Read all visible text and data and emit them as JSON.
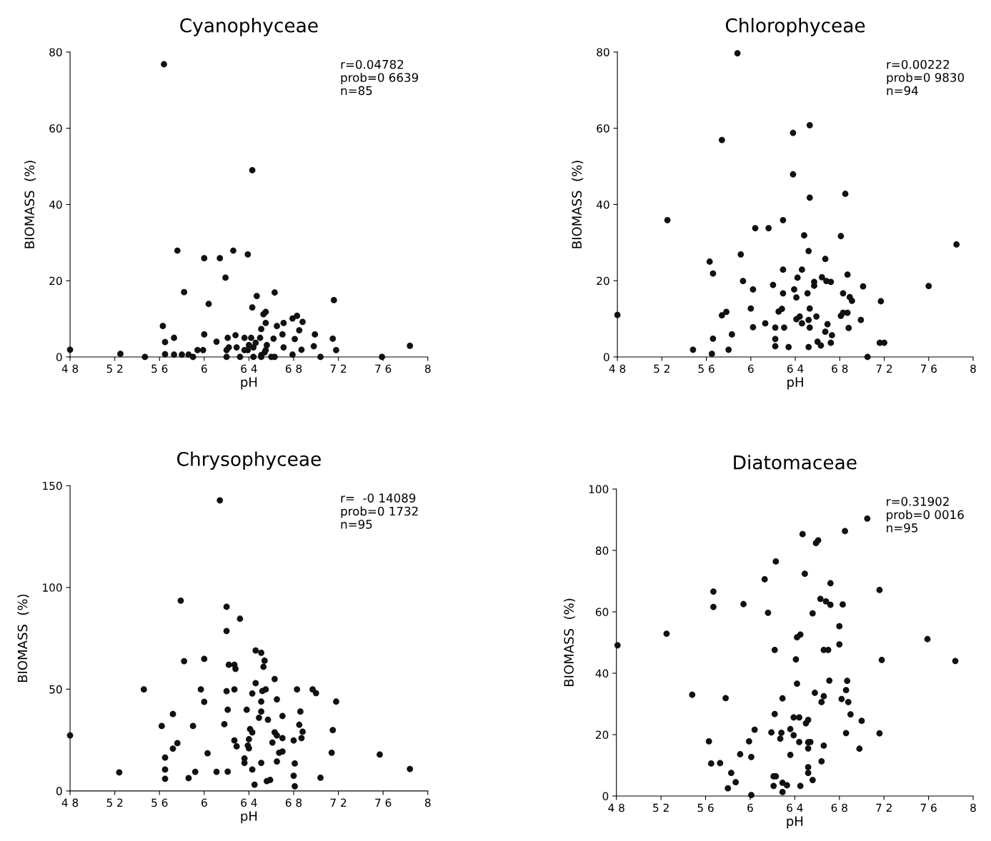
{
  "chart_data": [
    {
      "type": "scatter",
      "title": "Cyanophyceae",
      "xlabel": "pH",
      "ylabel": "BIOMASS  (%)",
      "color": "#111111",
      "marker": "circle",
      "xlim": [
        4.8,
        8
      ],
      "xticks": [
        {
          "value": 4.8,
          "label": "4 8"
        },
        {
          "value": 5.2,
          "label": "5 2"
        },
        {
          "value": 5.6,
          "label": "5 6"
        },
        6,
        {
          "value": 6.4,
          "label": "6 4"
        },
        {
          "value": 6.8,
          "label": "6 8"
        },
        {
          "value": 7.2,
          "label": "7 2"
        },
        {
          "value": 7.6,
          "label": "7 6"
        },
        8
      ],
      "ylim": [
        0,
        80
      ],
      "yticks": [
        0,
        20,
        40,
        60,
        80
      ],
      "annotations": [
        "r=0.04782",
        "prob=0 6639",
        "n=85"
      ],
      "x": [
        4.8,
        5.25,
        5.47,
        5.64,
        5.76,
        5.82,
        5.63,
        5.65,
        5.73,
        5.65,
        5.73,
        5.8,
        5.86,
        5.9,
        5.94,
        5.99,
        6.0,
        6.04,
        6.0,
        6.11,
        6.14,
        6.19,
        6.26,
        6.39,
        6.43,
        6.47,
        6.43,
        6.63,
        7.16,
        7.84,
        7.59,
        7.18,
        7.15,
        7.04,
        6.99,
        6.98,
        6.79,
        6.85,
        6.83,
        6.79,
        6.88,
        6.81,
        6.87,
        6.71,
        6.65,
        6.7,
        6.71,
        6.62,
        6.63,
        6.55,
        6.53,
        6.55,
        6.51,
        6.5,
        6.56,
        6.54,
        6.51,
        6.44,
        6.51,
        6.6,
        6.36,
        6.42,
        6.4,
        6.36,
        6.32,
        6.46,
        6.28,
        6.29,
        6.21,
        6.2,
        6.2,
        6.22,
        6.39,
        6.55,
        6.44
      ],
      "values": [
        1.9,
        0.8,
        0,
        76.8,
        27.9,
        17.0,
        8.1,
        3.9,
        5.0,
        0.7,
        0.6,
        0.6,
        0.6,
        0,
        1.8,
        1.8,
        25.9,
        13.9,
        5.9,
        4.0,
        25.9,
        20.8,
        27.9,
        26.9,
        49.0,
        16.0,
        13.0,
        16.9,
        14.9,
        2.9,
        0,
        1.8,
        4.8,
        0,
        5.9,
        2.8,
        0.6,
        7.0,
        10.8,
        10.1,
        9.2,
        4.7,
        1.9,
        8.9,
        8.1,
        5.9,
        2.5,
        4.8,
        0,
        11.8,
        11.2,
        8.9,
        7.3,
        5.0,
        3.1,
        1.2,
        0.5,
        0,
        0,
        0,
        5.0,
        5.0,
        3.1,
        1.8,
        0,
        3.7,
        5.7,
        2.5,
        5.0,
        1.8,
        0,
        2.5,
        1.8,
        1.8,
        2.5
      ]
    },
    {
      "type": "scatter",
      "title": "Chlorophyceae",
      "xlabel": "pH",
      "ylabel": "BIOMASS  (%)",
      "color": "#111111",
      "marker": "circle",
      "xlim": [
        4.8,
        8
      ],
      "xticks": [
        {
          "value": 4.8,
          "label": "4 8"
        },
        {
          "value": 5.2,
          "label": "5 2"
        },
        {
          "value": 5.6,
          "label": "5 6"
        },
        6,
        {
          "value": 6.4,
          "label": "6 4"
        },
        {
          "value": 6.8,
          "label": "6 8"
        },
        {
          "value": 7.2,
          "label": "7 2"
        },
        {
          "value": 7.6,
          "label": "7 6"
        },
        8
      ],
      "ylim": [
        0,
        80
      ],
      "yticks": [
        0,
        20,
        40,
        60,
        80
      ],
      "annotations": [
        "r=0.00222",
        "prob=0 9830",
        "n=94"
      ],
      "x": [
        4.8,
        5.25,
        5.88,
        5.74,
        5.48,
        5.63,
        5.66,
        5.66,
        5.65,
        5.74,
        5.78,
        5.8,
        5.83,
        5.91,
        5.93,
        6.0,
        6.02,
        6.02,
        6.04,
        6.13,
        6.16,
        6.2,
        6.22,
        6.22,
        6.22,
        6.25,
        6.28,
        6.29,
        6.29,
        6.29,
        6.3,
        6.34,
        6.38,
        6.38,
        6.39,
        6.41,
        6.42,
        6.41,
        6.44,
        6.46,
        6.46,
        6.48,
        6.51,
        6.53,
        6.53,
        6.52,
        6.53,
        6.52,
        6.53,
        6.52,
        6.57,
        6.57,
        6.59,
        6.6,
        6.63,
        6.64,
        6.67,
        6.68,
        6.72,
        6.69,
        6.67,
        6.73,
        6.72,
        6.81,
        6.85,
        6.83,
        6.87,
        6.89,
        6.91,
        6.83,
        6.81,
        6.87,
        6.88,
        6.99,
        7.01,
        7.05,
        7.17,
        7.16,
        7.2,
        7.6,
        7.85
      ],
      "values": [
        11.0,
        35.9,
        79.7,
        56.9,
        1.9,
        25.0,
        21.9,
        4.8,
        0.8,
        10.9,
        11.8,
        1.9,
        5.9,
        26.9,
        19.9,
        12.7,
        17.7,
        7.8,
        33.8,
        8.8,
        33.8,
        18.9,
        7.7,
        4.7,
        2.8,
        11.9,
        12.6,
        35.9,
        22.9,
        16.7,
        7.7,
        2.6,
        58.8,
        47.9,
        17.7,
        15.6,
        20.8,
        9.9,
        10.6,
        8.8,
        22.9,
        31.9,
        16.7,
        60.8,
        41.8,
        27.8,
        12.7,
        9.7,
        7.7,
        2.6,
        19.7,
        18.7,
        10.6,
        4.0,
        3.0,
        20.9,
        25.7,
        19.9,
        19.7,
        8.6,
        6.6,
        5.7,
        3.7,
        31.7,
        42.8,
        16.7,
        21.6,
        15.7,
        14.7,
        11.6,
        10.8,
        11.6,
        7.6,
        9.7,
        18.5,
        0,
        14.6,
        3.7,
        3.7,
        18.6,
        29.5
      ]
    },
    {
      "type": "scatter",
      "title": "Chrysophyceae",
      "xlabel": "pH",
      "ylabel": "BIOMASS  (%)",
      "color": "#111111",
      "marker": "circle",
      "xlim": [
        4.8,
        8
      ],
      "xticks": [
        {
          "value": 4.8,
          "label": "4 8"
        },
        {
          "value": 5.2,
          "label": "5 2"
        },
        {
          "value": 5.6,
          "label": "5 6"
        },
        6,
        {
          "value": 6.4,
          "label": "6 4"
        },
        {
          "value": 6.8,
          "label": "6 8"
        },
        {
          "value": 7.2,
          "label": "7 2"
        },
        {
          "value": 7.6,
          "label": "7 6"
        },
        8
      ],
      "ylim": [
        0,
        150
      ],
      "yticks": [
        0,
        50,
        100,
        150
      ],
      "annotations": [
        "r=  -0 14089",
        "prob=0 1732",
        "n=95"
      ],
      "x": [
        4.8,
        5.24,
        5.46,
        6.14,
        5.79,
        5.82,
        5.62,
        5.65,
        5.65,
        5.65,
        5.72,
        5.76,
        5.72,
        5.86,
        5.9,
        5.92,
        5.97,
        6.0,
        6.0,
        6.03,
        6.11,
        6.18,
        6.2,
        6.2,
        6.22,
        6.27,
        6.28,
        6.2,
        6.27,
        6.21,
        6.21,
        6.32,
        6.27,
        6.29,
        6.38,
        6.36,
        6.36,
        6.41,
        6.43,
        6.4,
        6.39,
        6.4,
        6.43,
        6.45,
        6.46,
        6.51,
        6.54,
        6.53,
        6.46,
        6.43,
        6.52,
        6.55,
        6.51,
        6.51,
        6.49,
        6.57,
        6.51,
        6.56,
        6.59,
        6.63,
        6.65,
        6.63,
        6.65,
        6.7,
        6.7,
        6.61,
        6.67,
        6.7,
        6.65,
        6.83,
        6.86,
        6.85,
        6.88,
        6.87,
        6.8,
        6.81,
        6.8,
        6.81,
        6.97,
        7.0,
        7.04,
        7.18,
        7.15,
        7.14,
        7.57,
        7.84
      ],
      "values": [
        27.3,
        9.1,
        49.9,
        142.8,
        93.5,
        63.8,
        31.9,
        16.4,
        10.5,
        6.0,
        37.8,
        23.5,
        20.8,
        6.3,
        31.9,
        9.4,
        49.9,
        43.8,
        64.9,
        18.5,
        9.4,
        32.8,
        90.5,
        78.6,
        62.0,
        62.0,
        60.0,
        49.0,
        49.9,
        39.9,
        9.5,
        84.6,
        24.8,
        21.9,
        39.9,
        16.0,
        13.8,
        30.4,
        28.8,
        25.4,
        22.3,
        21.0,
        10.5,
        3.1,
        69.0,
        67.9,
        64.0,
        61.0,
        53.0,
        47.9,
        49.1,
        49.9,
        43.9,
        39.0,
        36.0,
        35.0,
        13.8,
        4.8,
        5.4,
        55.0,
        45.0,
        28.8,
        27.3,
        36.8,
        26.0,
        23.8,
        18.8,
        19.4,
        14.5,
        49.9,
        39.0,
        32.5,
        29.1,
        26.0,
        24.8,
        13.5,
        7.5,
        2.3,
        49.9,
        48.1,
        6.5,
        43.9,
        29.9,
        18.8,
        17.9,
        10.8
      ]
    },
    {
      "type": "scatter",
      "title": "Diatomaceae",
      "xlabel": "pH",
      "ylabel": "BIOMASS  (%)",
      "color": "#111111",
      "marker": "circle",
      "xlim": [
        4.8,
        8
      ],
      "xticks": [
        {
          "value": 4.8,
          "label": "4 8"
        },
        {
          "value": 5.2,
          "label": "5 2"
        },
        {
          "value": 5.6,
          "label": "5 6"
        },
        6,
        {
          "value": 6.4,
          "label": "6 4"
        },
        {
          "value": 6.8,
          "label": "6 8"
        },
        {
          "value": 7.2,
          "label": "7 2"
        },
        {
          "value": 7.6,
          "label": "7 6"
        },
        8
      ],
      "ylim": [
        0,
        100
      ],
      "yticks": [
        0,
        20,
        40,
        60,
        80,
        100
      ],
      "annotations": [
        "r=0.31902",
        "prob=0 0016",
        "n=95"
      ],
      "x": [
        4.81,
        5.25,
        5.48,
        5.67,
        5.67,
        5.63,
        5.65,
        5.73,
        5.78,
        5.83,
        5.8,
        5.87,
        5.91,
        5.94,
        5.99,
        6.01,
        6.01,
        6.04,
        6.13,
        6.16,
        6.19,
        6.23,
        6.22,
        6.22,
        6.21,
        6.23,
        6.21,
        6.28,
        6.27,
        6.29,
        6.29,
        6.33,
        6.29,
        6.36,
        6.39,
        6.36,
        6.41,
        6.42,
        6.45,
        6.42,
        6.39,
        6.44,
        6.44,
        6.45,
        6.47,
        6.49,
        6.5,
        6.52,
        6.52,
        6.54,
        6.52,
        6.52,
        6.52,
        6.56,
        6.56,
        6.58,
        6.59,
        6.61,
        6.63,
        6.68,
        6.72,
        6.72,
        6.66,
        6.7,
        6.71,
        6.66,
        6.64,
        6.66,
        6.64,
        6.8,
        6.8,
        6.83,
        6.85,
        6.87,
        6.86,
        6.82,
        6.88,
        6.9,
        6.86,
        7.0,
        6.98,
        7.05,
        7.16,
        7.18,
        7.16,
        7.59,
        7.84
      ],
      "values": [
        49.1,
        52.9,
        33.0,
        66.6,
        61.6,
        17.8,
        10.6,
        10.7,
        31.9,
        7.5,
        2.5,
        4.5,
        13.6,
        62.5,
        17.8,
        12.7,
        0.3,
        21.6,
        70.6,
        59.7,
        20.7,
        76.4,
        47.6,
        26.7,
        6.4,
        6.4,
        3.3,
        20.6,
        18.7,
        31.8,
        4.3,
        3.5,
        1.3,
        21.8,
        19.8,
        13.4,
        44.5,
        51.7,
        52.6,
        36.6,
        25.6,
        25.6,
        17.6,
        3.3,
        85.3,
        72.4,
        23.7,
        24.8,
        17.5,
        17.6,
        15.5,
        9.4,
        7.5,
        5.2,
        59.5,
        33.6,
        82.4,
        83.3,
        64.2,
        63.4,
        62.3,
        69.3,
        47.6,
        47.6,
        37.6,
        32.5,
        30.6,
        16.4,
        11.3,
        55.3,
        49.4,
        62.4,
        86.3,
        37.5,
        34.5,
        31.6,
        30.6,
        26.6,
        20.5,
        24.5,
        15.4,
        90.4,
        67.1,
        44.3,
        20.4,
        51.1,
        44.0
      ]
    }
  ]
}
